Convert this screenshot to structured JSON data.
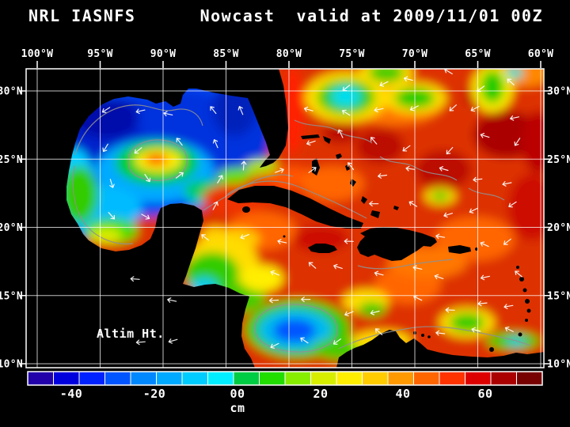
{
  "header": {
    "left": "NRL IASNFS",
    "center": "Nowcast",
    "right": "valid at 2009/11/01 00Z"
  },
  "map": {
    "field_label": "Altim Ht.",
    "lon_ticks": [
      "100°W",
      "95°W",
      "90°W",
      "85°W",
      "80°W",
      "75°W",
      "70°W",
      "65°W",
      "60°W"
    ],
    "lat_ticks": [
      "30°N",
      "25°N",
      "20°N",
      "15°N",
      "10°N"
    ]
  },
  "colorbar": {
    "unit": "cm",
    "tick_labels": [
      "-40",
      "-20",
      "00",
      "20",
      "40",
      "60"
    ],
    "tick_values": [
      -40,
      -20,
      0,
      20,
      40,
      60
    ],
    "colors": [
      "#2200aa",
      "#0000dd",
      "#0022ff",
      "#0055ff",
      "#0088ff",
      "#00aaff",
      "#00ccff",
      "#00eeff",
      "#00cc44",
      "#22dd00",
      "#88ee00",
      "#d8ee00",
      "#ffee00",
      "#ffcc00",
      "#ff9900",
      "#ff6600",
      "#ff3300",
      "#dd0000",
      "#aa0000",
      "#770000"
    ]
  },
  "chart_data": {
    "type": "heatmap",
    "title": "NRL IASNFS Nowcast valid at 2009/11/01 00Z",
    "variable": "Altimeter Height (Altim Ht.)",
    "units": "cm",
    "region": "Gulf of Mexico and Caribbean Sea (Intra-Americas Sea)",
    "x_axis": {
      "label": "Longitude",
      "ticks": [
        "100°W",
        "95°W",
        "90°W",
        "85°W",
        "80°W",
        "75°W",
        "70°W",
        "65°W",
        "60°W"
      ]
    },
    "y_axis": {
      "label": "Latitude",
      "ticks": [
        "30°N",
        "25°N",
        "20°N",
        "15°N",
        "10°N"
      ]
    },
    "colorbar_ticks": [
      -40,
      -20,
      0,
      20,
      40,
      60
    ],
    "colorbar_range_cm": [
      -50,
      70
    ],
    "grid_on": true,
    "overlays": [
      "white surface current vectors",
      "gray contour lines",
      "black land mask",
      "5-degree white grid"
    ],
    "grid_sample": {
      "lats": [
        30,
        25,
        20,
        15,
        10
      ],
      "lons": [
        -100,
        -95,
        -90,
        -85,
        -80,
        -75,
        -70,
        -65,
        -60
      ],
      "values_cm": [
        [
          null,
          null,
          null,
          -25,
          35,
          -10,
          10,
          30,
          35
        ],
        [
          null,
          -20,
          45,
          -30,
          45,
          35,
          40,
          30,
          45
        ],
        [
          null,
          -5,
          null,
          10,
          35,
          30,
          45,
          45,
          40
        ],
        [
          null,
          null,
          null,
          5,
          20,
          20,
          40,
          30,
          30
        ],
        [
          null,
          null,
          null,
          null,
          -20,
          null,
          null,
          null,
          null
        ]
      ]
    },
    "features": [
      "anticyclonic warm eddy (+50 cm core) near 90.5W 25N in western Gulf of Mexico",
      "low SSH (-30 to -40 cm, blue) across northern and eastern Gulf of Mexico",
      "Loop Current / Florida Current high (+40-50 cm) from NW of Cuba through the Florida Straits",
      "broad high SSH (+30-50 cm, red/orange) over the Atlantic and most of the Caribbean",
      "cyclonic low (-20 cm) in the Panama-Colombia gyre near 79W 12.5N",
      "cool green/cyan patches near 75.5W 29.5N, 70W 29.5N and 64W 29N in the Atlantic",
      "green/yellow mixed field in the western Caribbean off Honduras and Yucatan"
    ]
  }
}
